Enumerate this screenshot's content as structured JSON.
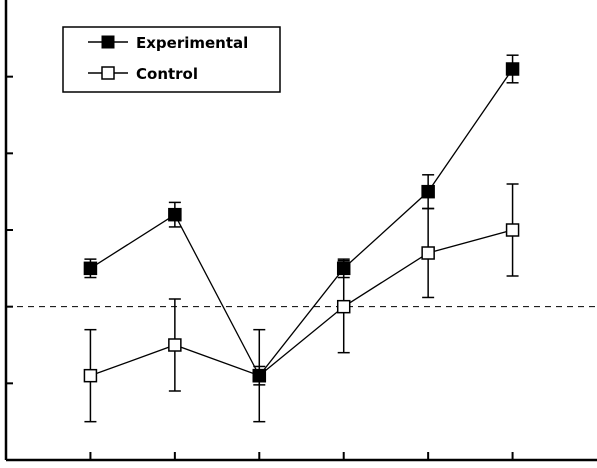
{
  "chart_data": {
    "type": "line",
    "title": "",
    "xlabel": "",
    "ylabel": "",
    "x": [
      1,
      2,
      3,
      4,
      5,
      6
    ],
    "xlim": [
      0,
      7
    ],
    "ylim": [
      0,
      6
    ],
    "y_ticks": [
      1,
      2,
      3,
      4,
      5
    ],
    "reference_line": {
      "y": 2,
      "style": "dashed"
    },
    "grid": false,
    "legend": {
      "position": "top-left",
      "entries": [
        "Experimental",
        "Control"
      ]
    },
    "series": [
      {
        "name": "Experimental",
        "marker": "filled-square",
        "color": "#000000",
        "values": [
          2.5,
          3.2,
          1.1,
          2.5,
          3.5,
          5.1
        ],
        "errors": [
          0.12,
          0.16,
          0.12,
          0.12,
          0.22,
          0.18
        ]
      },
      {
        "name": "Control",
        "marker": "open-square",
        "color": "#000000",
        "values": [
          1.1,
          1.5,
          1.1,
          2.0,
          2.7,
          3.0
        ],
        "errors": [
          0.6,
          0.6,
          0.6,
          0.6,
          0.58,
          0.6
        ]
      }
    ]
  }
}
